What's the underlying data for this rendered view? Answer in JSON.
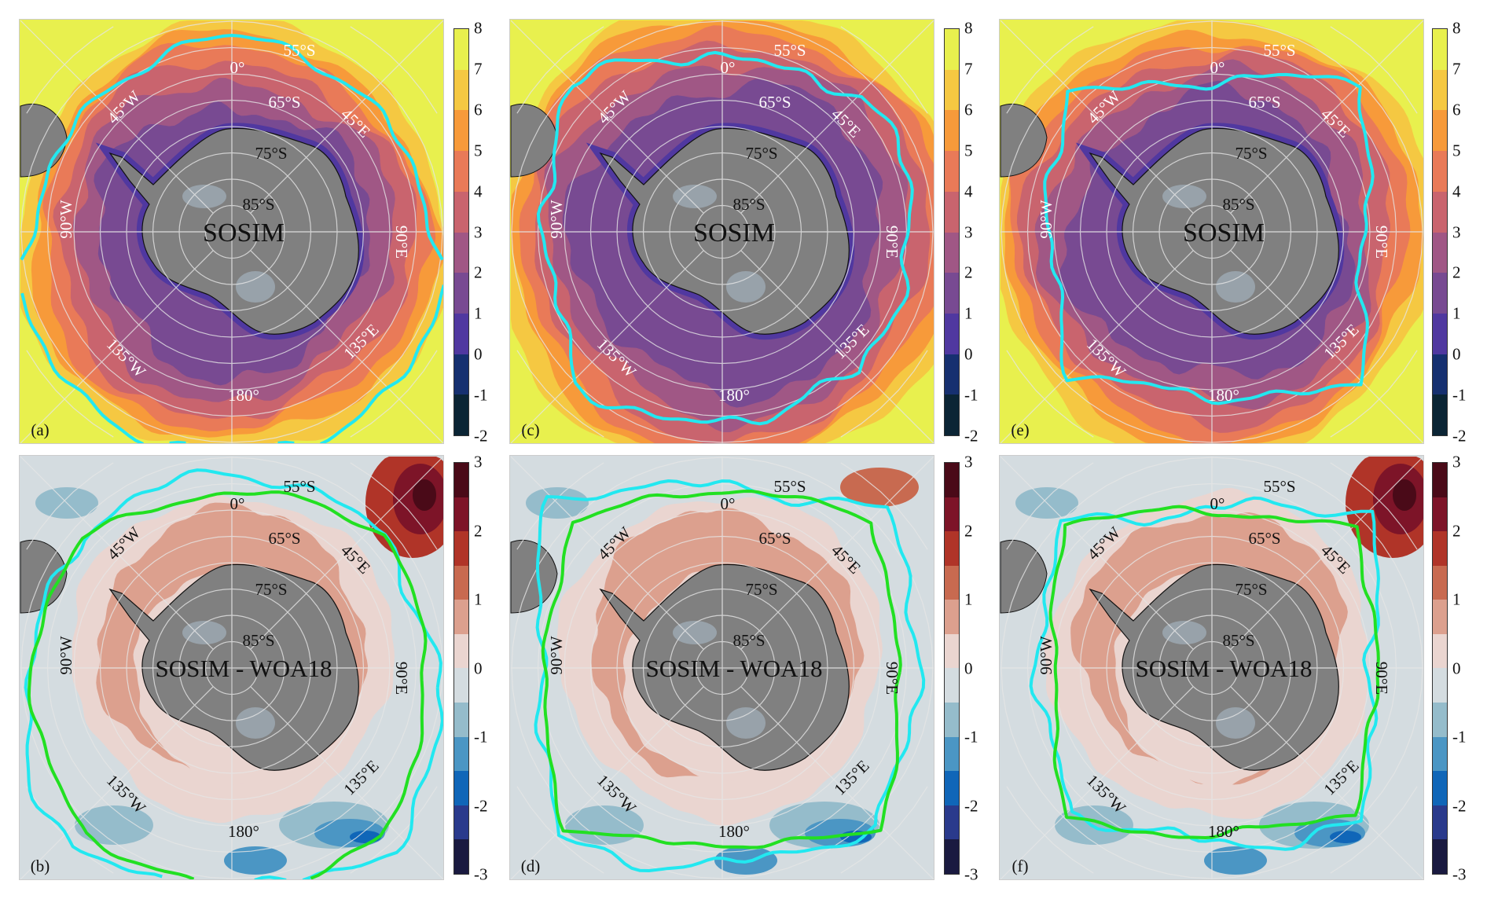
{
  "panels": [
    {
      "letter": "(a)",
      "title": "SOSIM",
      "kind": "top",
      "contours": [
        "cyan"
      ]
    },
    {
      "letter": "(c)",
      "title": "SOSIM",
      "kind": "top",
      "contours": [
        "cyan"
      ]
    },
    {
      "letter": "(e)",
      "title": "SOSIM",
      "kind": "top",
      "contours": [
        "cyan"
      ]
    },
    {
      "letter": "(b)",
      "title": "SOSIM - WOA18",
      "kind": "bottom",
      "contours": [
        "cyan",
        "green"
      ]
    },
    {
      "letter": "(d)",
      "title": "SOSIM - WOA18",
      "kind": "bottom",
      "contours": [
        "cyan",
        "green"
      ]
    },
    {
      "letter": "(f)",
      "title": "SOSIM - WOA18",
      "kind": "bottom",
      "contours": [
        "cyan",
        "green"
      ]
    }
  ],
  "grid_labels": {
    "lat55": "55°S",
    "lat65": "65°S",
    "lat75": "75°S",
    "lat85": "85°S",
    "lon0": "0°",
    "lon45w": "45°W",
    "lon45e": "45°E",
    "lon90w": "90°W",
    "lon90e": "90°E",
    "lon135w": "135°W",
    "lon135e": "135°E",
    "lon180": "180°"
  },
  "colorbars": {
    "top": {
      "ticks": [
        "8",
        "7",
        "6",
        "5",
        "4",
        "3",
        "2",
        "1",
        "0",
        "-1",
        "-2"
      ],
      "colors": [
        "#e8f04e",
        "#f5c842",
        "#f79a3a",
        "#e97a58",
        "#c9646e",
        "#a05785",
        "#784a92",
        "#5038a0",
        "#163070",
        "#0b2535"
      ]
    },
    "bottom": {
      "ticks": [
        "3",
        "2",
        "1",
        "0",
        "-1",
        "-2",
        "-3"
      ],
      "colors": [
        "#4a0a18",
        "#7d1428",
        "#b03428",
        "#c86a50",
        "#dca08e",
        "#ead5d0",
        "#d4dce0",
        "#95bccb",
        "#4b96c4",
        "#1066b8",
        "#2a3a8c",
        "#1a1a40"
      ]
    },
    "contour_colors": {
      "cyan": "#22e8f0",
      "green": "#22e022"
    }
  }
}
